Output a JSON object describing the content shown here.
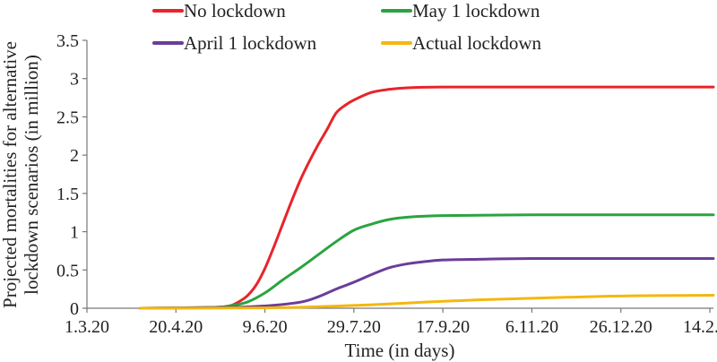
{
  "chart_data": {
    "type": "line",
    "xlabel": "Time (in days)",
    "ylabel_lines": [
      "Projected mortalities for alternative",
      "lockdown scenarios (in million)"
    ],
    "x_tick_labels": [
      "1.3.20",
      "20.4.20",
      "9.6.20",
      "29.7.20",
      "17.9.20",
      "6.11.20",
      "26.12.20",
      "14.2.21"
    ],
    "x_tick_days": [
      0,
      50,
      100,
      150,
      200,
      250,
      300,
      350
    ],
    "y_tick_labels": [
      "0",
      "0.5",
      "1",
      "1.5",
      "2",
      "2.5",
      "3",
      "3.5"
    ],
    "ylim": [
      0,
      3.5
    ],
    "xlim": [
      0,
      352
    ],
    "legend_position": "top",
    "series": [
      {
        "name": "No lockdown",
        "color": "#e8242a",
        "x": [
          30,
          70,
          80,
          85,
          90,
          95,
          100,
          105,
          110,
          115,
          120,
          125,
          130,
          135,
          140,
          145,
          150,
          160,
          170,
          180,
          200,
          250,
          300,
          352
        ],
        "y": [
          0,
          0.01,
          0.03,
          0.08,
          0.16,
          0.3,
          0.52,
          0.8,
          1.1,
          1.4,
          1.68,
          1.92,
          2.14,
          2.34,
          2.55,
          2.65,
          2.72,
          2.82,
          2.86,
          2.88,
          2.89,
          2.89,
          2.89,
          2.89
        ]
      },
      {
        "name": "May 1 lockdown",
        "color": "#2aa43f",
        "x": [
          30,
          70,
          80,
          90,
          100,
          110,
          120,
          130,
          140,
          150,
          160,
          170,
          180,
          200,
          250,
          300,
          352
        ],
        "y": [
          0,
          0.01,
          0.03,
          0.08,
          0.2,
          0.37,
          0.53,
          0.7,
          0.87,
          1.02,
          1.1,
          1.16,
          1.19,
          1.21,
          1.22,
          1.22,
          1.22
        ]
      },
      {
        "name": "April 1 lockdown",
        "color": "#6b3d98",
        "x": [
          30,
          80,
          100,
          120,
          130,
          140,
          150,
          160,
          170,
          180,
          190,
          200,
          220,
          250,
          300,
          352
        ],
        "y": [
          0,
          0.01,
          0.03,
          0.08,
          0.15,
          0.25,
          0.34,
          0.44,
          0.53,
          0.58,
          0.61,
          0.63,
          0.64,
          0.65,
          0.65,
          0.65
        ]
      },
      {
        "name": "Actual lockdown",
        "color": "#f5b70f",
        "x": [
          30,
          100,
          130,
          160,
          190,
          220,
          250,
          280,
          300,
          320,
          352
        ],
        "y": [
          0,
          0.005,
          0.02,
          0.045,
          0.08,
          0.11,
          0.13,
          0.15,
          0.16,
          0.165,
          0.17
        ]
      }
    ]
  }
}
